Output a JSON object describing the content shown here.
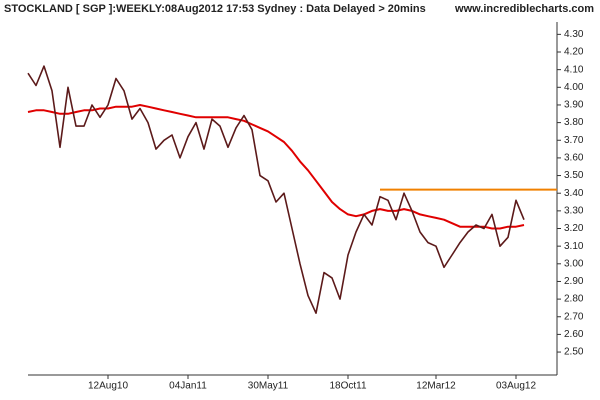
{
  "chart_data": {
    "type": "line",
    "title": "STOCKLAND [ SGP ]:WEEKLY:08Aug2012 17:53 Sydney : Data Delayed > 20mins",
    "source": "www.incrediblecharts.com",
    "categories": [
      null,
      null,
      null,
      null,
      null,
      null,
      null,
      null,
      null,
      null,
      "12Aug10",
      null,
      null,
      null,
      null,
      null,
      null,
      null,
      null,
      null,
      "04Jan11",
      null,
      null,
      null,
      null,
      null,
      null,
      null,
      null,
      null,
      "30May11",
      null,
      null,
      null,
      null,
      null,
      null,
      null,
      null,
      null,
      "18Oct11",
      null,
      null,
      null,
      null,
      null,
      null,
      null,
      null,
      null,
      null,
      "12Mar12",
      null,
      null,
      null,
      null,
      null,
      null,
      null,
      null,
      null,
      "03Aug12",
      null
    ],
    "series": [
      {
        "color": "#5c1a1a",
        "values": [
          4.08,
          4.01,
          4.12,
          3.98,
          3.66,
          4.0,
          3.78,
          3.78,
          3.9,
          3.83,
          3.9,
          4.05,
          3.98,
          3.82,
          3.88,
          3.8,
          3.65,
          3.7,
          3.73,
          3.6,
          3.72,
          3.8,
          3.65,
          3.82,
          3.78,
          3.66,
          3.77,
          3.84,
          3.76,
          3.5,
          3.47,
          3.35,
          3.4,
          3.2,
          3.0,
          2.82,
          2.72,
          2.95,
          2.92,
          2.8,
          3.05,
          3.18,
          3.28,
          3.22,
          3.38,
          3.36,
          3.25,
          3.4,
          3.3,
          3.18,
          3.12,
          3.1,
          2.98,
          3.05,
          3.12,
          3.18,
          3.22,
          3.2,
          3.28,
          3.1,
          3.15,
          3.36,
          3.25
        ]
      },
      {
        "color": "#e00000",
        "values": [
          3.86,
          3.87,
          3.87,
          3.86,
          3.85,
          3.85,
          3.86,
          3.87,
          3.87,
          3.88,
          3.88,
          3.89,
          3.89,
          3.89,
          3.9,
          3.89,
          3.88,
          3.87,
          3.86,
          3.85,
          3.84,
          3.83,
          3.83,
          3.83,
          3.83,
          3.83,
          3.82,
          3.81,
          3.79,
          3.77,
          3.75,
          3.72,
          3.69,
          3.64,
          3.58,
          3.53,
          3.47,
          3.41,
          3.35,
          3.31,
          3.28,
          3.27,
          3.28,
          3.3,
          3.31,
          3.3,
          3.3,
          3.31,
          3.3,
          3.28,
          3.27,
          3.26,
          3.25,
          3.23,
          3.21,
          3.21,
          3.21,
          3.21,
          3.2,
          3.2,
          3.21,
          3.21,
          3.22
        ]
      }
    ],
    "resistance": {
      "value": 3.42,
      "start_index": 44,
      "color": "#f08000"
    },
    "ylim": [
      2.37,
      4.37
    ],
    "yticks": [
      {
        "value": 2.5,
        "label": "2.50"
      },
      {
        "value": 2.6,
        "label": "2.60"
      },
      {
        "value": 2.7,
        "label": "2.70"
      },
      {
        "value": 2.8,
        "label": "2.80"
      },
      {
        "value": 2.9,
        "label": "2.90"
      },
      {
        "value": 3.0,
        "label": "3.00"
      },
      {
        "value": 3.1,
        "label": "3.10"
      },
      {
        "value": 3.2,
        "label": "3.20"
      },
      {
        "value": 3.3,
        "label": "3.30"
      },
      {
        "value": 3.4,
        "label": "3.40"
      },
      {
        "value": 3.5,
        "label": "3.50"
      },
      {
        "value": 3.6,
        "label": "3.60"
      },
      {
        "value": 3.7,
        "label": "3.70"
      },
      {
        "value": 3.8,
        "label": "3.80"
      },
      {
        "value": 3.9,
        "label": "3.90"
      },
      {
        "value": 4.0,
        "label": "4.00"
      },
      {
        "value": 4.1,
        "label": "4.10"
      },
      {
        "value": 4.2,
        "label": "4.20"
      },
      {
        "value": 4.3,
        "label": "4.30"
      }
    ],
    "grid": false
  }
}
